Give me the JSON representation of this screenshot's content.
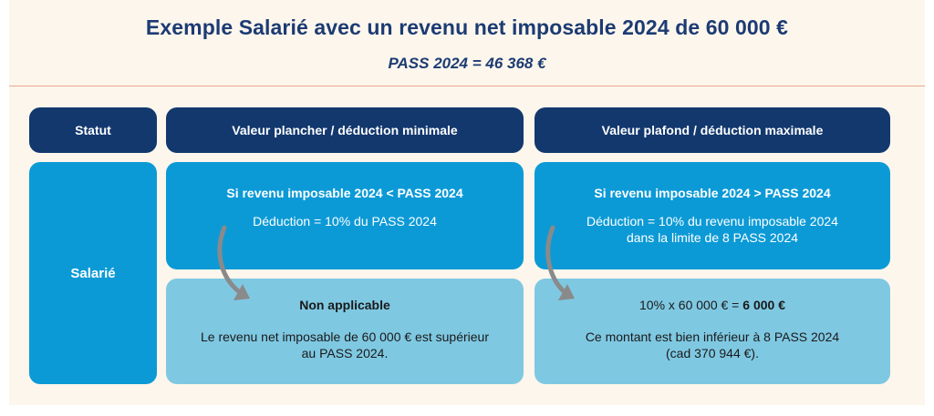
{
  "header": {
    "title": "Exemple Salarié avec un revenu net imposable 2024 de 60 000 €",
    "subtitle": "PASS 2024 = 46 368 €"
  },
  "table": {
    "col_statut": "Statut",
    "col_plancher": "Valeur plancher / déduction minimale",
    "col_plafond": "Valeur plafond / déduction maximale",
    "row_label": "Salarié",
    "plancher_condition": "Si revenu imposable 2024 < PASS 2024",
    "plancher_formula": "Déduction = 10% du PASS 2024",
    "plafond_condition": "Si revenu imposable 2024 > PASS 2024",
    "plafond_formula_line1": "Déduction = 10% du revenu imposable 2024",
    "plafond_formula_line2": "dans la limite de 8 PASS 2024",
    "plancher_result_title": "Non applicable",
    "plancher_result_line1": "Le revenu net imposable de 60 000 € est supérieur",
    "plancher_result_line2": "au PASS 2024.",
    "plafond_result_calc": "10% x 60 000 € = ",
    "plafond_result_value": "6 000 €",
    "plafond_result_line1": "Ce montant est bien inférieur à 8 PASS 2024",
    "plafond_result_line2": "(cad 370 944 €)."
  },
  "colors": {
    "header_dark": "#12386e",
    "cell_blue": "#0c9ad6",
    "cell_light": "#7fc8e2",
    "background": "#fdf6ec",
    "title_text": "#1c3b73",
    "arrow": "#8a8a8a"
  },
  "icons": [
    "curved-arrow-icon"
  ]
}
